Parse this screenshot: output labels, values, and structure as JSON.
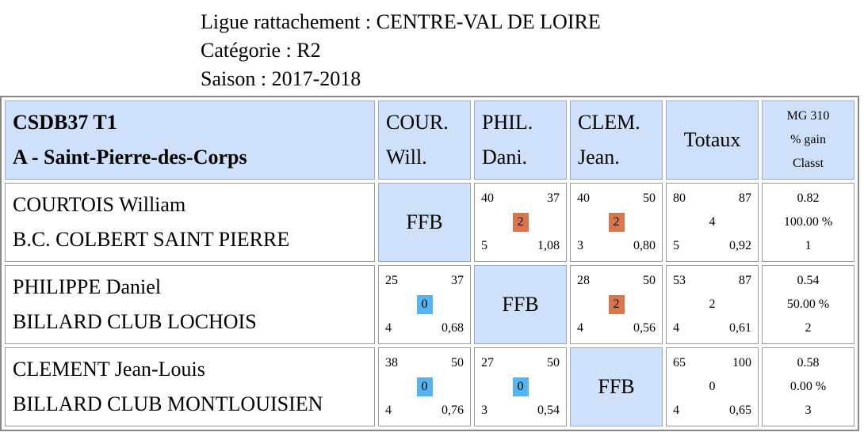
{
  "header": {
    "ligue": "Ligue rattachement : CENTRE-VAL DE LOIRE",
    "categorie": "Catégorie : R2",
    "saison": "Saison : 2017-2018"
  },
  "table": {
    "team_code": "CSDB37 T1",
    "team_name": "A - Saint-Pierre-des-Corps",
    "columns": [
      {
        "line1": "COUR.",
        "line2": "Will."
      },
      {
        "line1": "PHIL.",
        "line2": "Dani."
      },
      {
        "line1": "CLEM.",
        "line2": "Jean."
      }
    ],
    "totaux_label": "Totaux",
    "mg_header": [
      "MG 310",
      "% gain",
      "Classt"
    ],
    "ffb_label": "FFB",
    "rows": [
      {
        "name": "COURTOIS William",
        "club": "B.C. COLBERT SAINT PIERRE",
        "cells": [
          null,
          {
            "pts": "40",
            "target": "37",
            "result": "2",
            "innings": "5",
            "avg": "1,08"
          },
          {
            "pts": "40",
            "target": "50",
            "result": "2",
            "innings": "3",
            "avg": "0,80"
          }
        ],
        "total": {
          "pts": "80",
          "target": "87",
          "result": "4",
          "innings": "5",
          "avg": "0,92"
        },
        "mg": "0.82",
        "gain": "100.00 %",
        "rank": "1"
      },
      {
        "name": "PHILIPPE Daniel",
        "club": "BILLARD CLUB LOCHOIS",
        "cells": [
          {
            "pts": "25",
            "target": "37",
            "result": "0",
            "innings": "4",
            "avg": "0,68"
          },
          null,
          {
            "pts": "28",
            "target": "50",
            "result": "2",
            "innings": "4",
            "avg": "0,56"
          }
        ],
        "total": {
          "pts": "53",
          "target": "87",
          "result": "2",
          "innings": "4",
          "avg": "0,61"
        },
        "mg": "0.54",
        "gain": "50.00 %",
        "rank": "2"
      },
      {
        "name": "CLEMENT Jean-Louis",
        "club": "BILLARD CLUB MONTLOUISIEN",
        "cells": [
          {
            "pts": "38",
            "target": "50",
            "result": "0",
            "innings": "4",
            "avg": "0,76"
          },
          {
            "pts": "27",
            "target": "50",
            "result": "0",
            "innings": "3",
            "avg": "0,54"
          },
          null
        ],
        "total": {
          "pts": "65",
          "target": "100",
          "result": "0",
          "innings": "4",
          "avg": "0,65"
        },
        "mg": "0.58",
        "gain": "0.00 %",
        "rank": "3"
      }
    ]
  }
}
